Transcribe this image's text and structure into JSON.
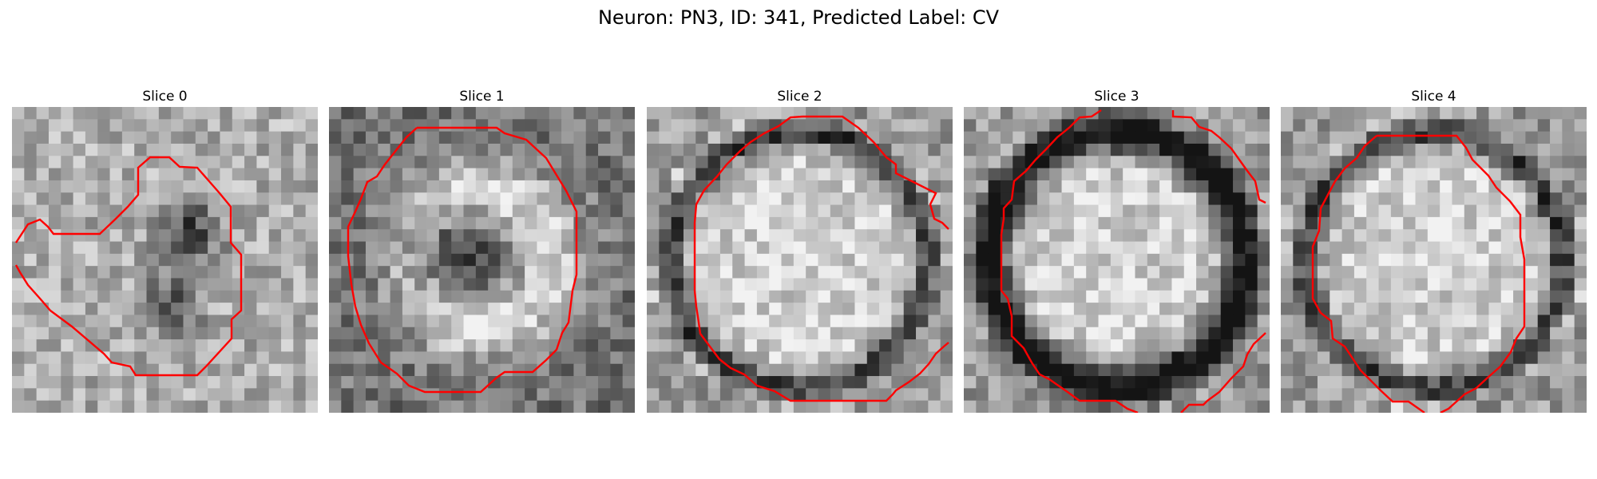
{
  "figure": {
    "title": "Neuron: PN3, ID: 341, Predicted Label: CV"
  },
  "panels": [
    {
      "title": "Slice 0",
      "pattern": "blob"
    },
    {
      "title": "Slice 1",
      "pattern": "crescent"
    },
    {
      "title": "Slice 2",
      "pattern": "ring"
    },
    {
      "title": "Slice 3",
      "pattern": "ring-dark"
    },
    {
      "title": "Slice 4",
      "pattern": "ring"
    }
  ],
  "colors": {
    "contour": "#ff0000",
    "background": "#ffffff"
  },
  "colormap": "gray"
}
